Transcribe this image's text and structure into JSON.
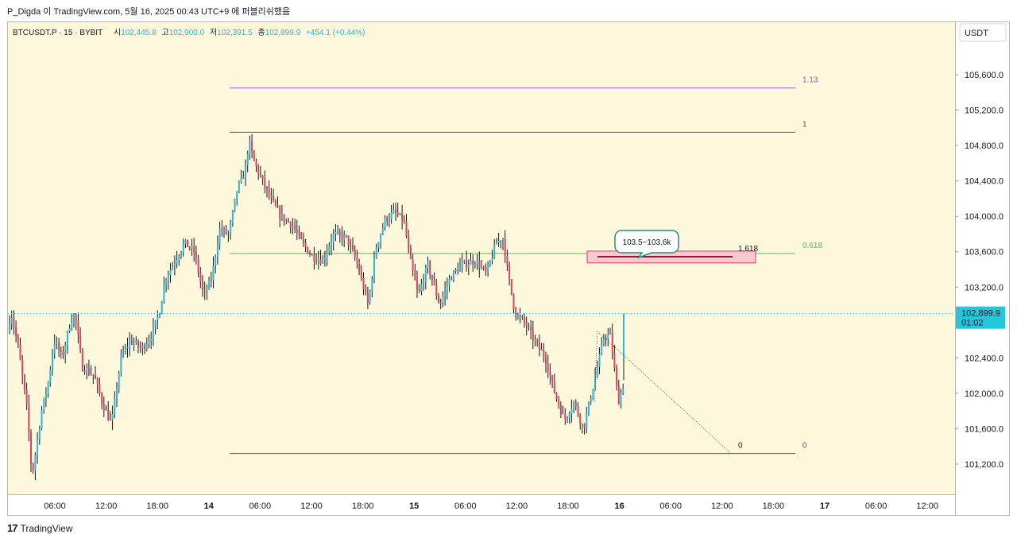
{
  "header": {
    "text": "P_Digda 이 TradingView.com, 5월 16, 2025 00:43 UTC+9 에 퍼블리쉬했음"
  },
  "legend": {
    "symbol": "BTCUSDT.P · 15 · BYBIT",
    "open_label": "시",
    "open": "102,445.8",
    "high_label": "고",
    "high": "102,900.0",
    "low_label": "저",
    "low": "102,391.5",
    "close_label": "종",
    "close": "102,899.9",
    "change": "+454.1 (+0.44%)"
  },
  "price_axis": {
    "currency": "USDT",
    "ticks": [
      "105,600.0",
      "105,200.0",
      "104,800.0",
      "104,400.0",
      "104,000.0",
      "103,600.0",
      "103,200.0",
      "102,400.0",
      "102,000.0",
      "101,600.0",
      "101,200.0"
    ],
    "current_price": "102,899.9",
    "countdown": "01:02"
  },
  "footer": {
    "brand": "TradingView",
    "logo": "17"
  },
  "colors": {
    "background": "#fdf8dc",
    "up": "#2fb3d6",
    "down": "#e0405b",
    "fib_113": "#9b59c6",
    "fib_0618": "#5fb35b",
    "fib_line": "#555555",
    "current": "#26c6da"
  },
  "chart_data": {
    "type": "candlestick",
    "symbol": "BTCUSDT.P",
    "interval": "15",
    "exchange": "BYBIT",
    "ylim": [
      101000,
      106000
    ],
    "x_ticks": [
      "06:00",
      "12:00",
      "18:00",
      "14",
      "06:00",
      "12:00",
      "18:00",
      "15",
      "06:00",
      "12:00",
      "18:00",
      "16",
      "06:00",
      "12:00",
      "18:00",
      "17",
      "06:00",
      "12:00"
    ],
    "price_path": [
      [
        0,
        102700
      ],
      [
        6,
        102900
      ],
      [
        15,
        102500
      ],
      [
        26,
        101800
      ],
      [
        32,
        101050
      ],
      [
        44,
        101800
      ],
      [
        52,
        102100
      ],
      [
        60,
        102600
      ],
      [
        70,
        102400
      ],
      [
        80,
        102800
      ],
      [
        86,
        102900
      ],
      [
        95,
        102300
      ],
      [
        110,
        102200
      ],
      [
        120,
        101900
      ],
      [
        132,
        101650
      ],
      [
        144,
        102400
      ],
      [
        156,
        102600
      ],
      [
        170,
        102500
      ],
      [
        182,
        102650
      ],
      [
        192,
        102900
      ],
      [
        200,
        103300
      ],
      [
        212,
        103500
      ],
      [
        224,
        103700
      ],
      [
        236,
        103600
      ],
      [
        248,
        103100
      ],
      [
        258,
        103300
      ],
      [
        268,
        103850
      ],
      [
        280,
        103800
      ],
      [
        290,
        104300
      ],
      [
        300,
        104500
      ],
      [
        305,
        104850
      ],
      [
        312,
        104600
      ],
      [
        322,
        104400
      ],
      [
        332,
        104200
      ],
      [
        345,
        104000
      ],
      [
        360,
        103900
      ],
      [
        372,
        103700
      ],
      [
        384,
        103550
      ],
      [
        398,
        103500
      ],
      [
        412,
        103800
      ],
      [
        428,
        103750
      ],
      [
        440,
        103500
      ],
      [
        455,
        103000
      ],
      [
        465,
        103650
      ],
      [
        476,
        103950
      ],
      [
        488,
        104050
      ],
      [
        500,
        103950
      ],
      [
        508,
        103500
      ],
      [
        518,
        103100
      ],
      [
        530,
        103450
      ],
      [
        545,
        103000
      ],
      [
        558,
        103300
      ],
      [
        572,
        103450
      ],
      [
        590,
        103500
      ],
      [
        604,
        103350
      ],
      [
        616,
        103700
      ],
      [
        625,
        103750
      ],
      [
        632,
        103300
      ],
      [
        640,
        102900
      ],
      [
        652,
        102800
      ],
      [
        664,
        102600
      ],
      [
        678,
        102400
      ],
      [
        690,
        102000
      ],
      [
        702,
        101700
      ],
      [
        714,
        101900
      ],
      [
        726,
        101600
      ],
      [
        740,
        102150
      ],
      [
        752,
        102650
      ],
      [
        760,
        102650
      ],
      [
        770,
        101900
      ],
      [
        778,
        102150
      ],
      [
        785,
        102900
      ]
    ],
    "fib_levels": [
      {
        "label": "1.13",
        "price": 105450
      },
      {
        "label": "1",
        "price": 104950
      },
      {
        "label": "0.618",
        "price": 103580
      },
      {
        "label": "0",
        "price": 101320
      }
    ],
    "target_box": {
      "label": "103.5~103.6k",
      "extension_label": "1.618",
      "price_low": 103500,
      "price_high": 103580
    },
    "projection_end_label": "0",
    "current_price": 102899.9
  }
}
